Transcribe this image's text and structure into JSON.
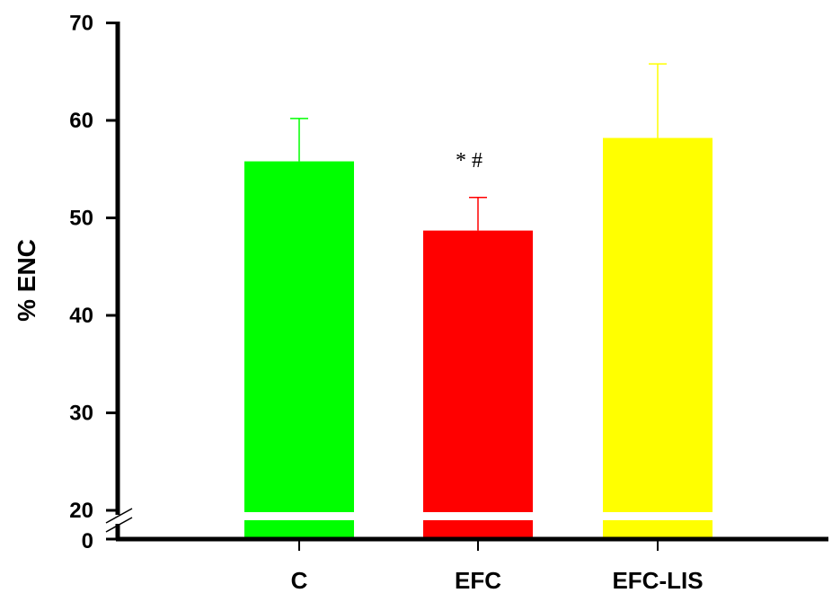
{
  "chart_data": {
    "type": "bar",
    "categories": [
      "C",
      "EFC",
      "EFC-LIS"
    ],
    "values": [
      55.8,
      48.7,
      58.2
    ],
    "errors": [
      4.4,
      3.4,
      7.6
    ],
    "colors": [
      "#00ff00",
      "#ff0000",
      "#ffff00"
    ],
    "ylabel": "% ENC",
    "xlabel": "",
    "title": "",
    "ylim": [
      20,
      70
    ],
    "axis_break": {
      "below": 20,
      "lower_tick": 0
    },
    "yticks": [
      20,
      30,
      40,
      50,
      60,
      70
    ],
    "ytick_labels": [
      "20",
      "30",
      "40",
      "50",
      "60",
      "70"
    ],
    "lower_tick_label": "0",
    "annotations": [
      {
        "category": "EFC",
        "text": "* #"
      }
    ],
    "grid": false,
    "legend": "none"
  }
}
